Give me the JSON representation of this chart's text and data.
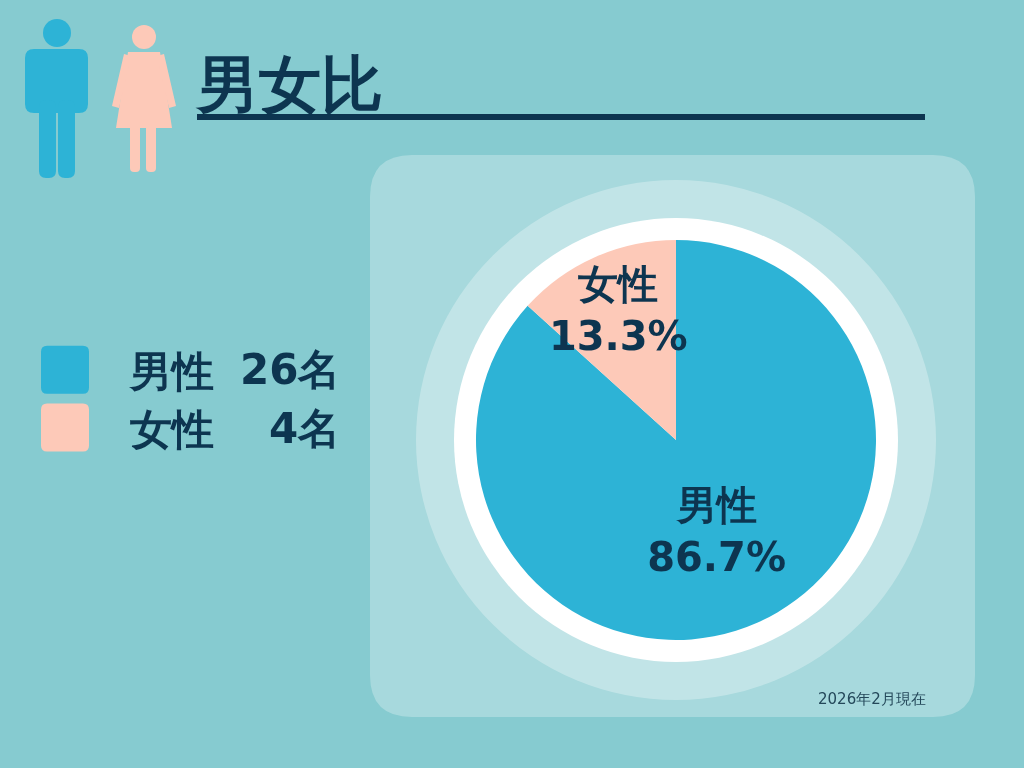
{
  "chart_data": {
    "type": "pie",
    "title": "男女比",
    "categories": [
      "男性",
      "女性"
    ],
    "values": [
      86.7,
      13.3
    ],
    "colors": [
      "#2db3d6",
      "#fdc9b8"
    ],
    "value_labels": [
      "86.7%",
      "13.3%"
    ],
    "legend": "left",
    "annotations": [
      "26名",
      "4名",
      "2026年2月現在"
    ]
  }
}
